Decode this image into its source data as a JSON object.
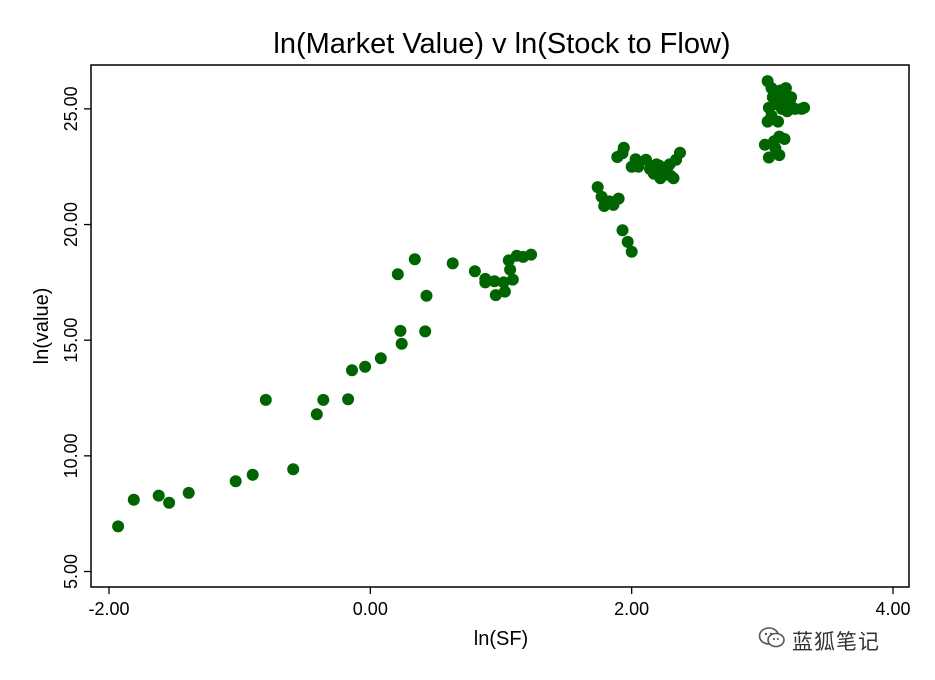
{
  "chart_data": {
    "type": "scatter",
    "title": "ln(Market Value) v ln(Stock to Flow)",
    "xlabel": "ln(SF)",
    "ylabel": "ln(value)",
    "xlim": [
      -2.0,
      4.0
    ],
    "ylim": [
      5.0,
      27.2
    ],
    "x_ticks": [
      -2.0,
      0.0,
      2.0,
      4.0
    ],
    "x_tick_labels": [
      "-2.00",
      "0.00",
      "2.00",
      "4.00"
    ],
    "y_ticks": [
      5.0,
      10.0,
      15.0,
      20.0,
      25.0
    ],
    "y_tick_labels": [
      "5.00",
      "10.00",
      "15.00",
      "20.00",
      "25.00"
    ],
    "grid": false,
    "marker_color": "#006400",
    "series": [
      {
        "points": [
          [
            -1.93,
            6.95
          ],
          [
            -1.81,
            8.1
          ],
          [
            -1.62,
            8.28
          ],
          [
            -1.54,
            7.97
          ],
          [
            -1.39,
            8.4
          ],
          [
            -1.03,
            8.9
          ],
          [
            -0.9,
            9.18
          ],
          [
            -0.8,
            12.42
          ],
          [
            -0.59,
            9.42
          ],
          [
            -0.41,
            11.8
          ],
          [
            -0.36,
            12.42
          ],
          [
            -0.17,
            12.45
          ],
          [
            -0.14,
            13.7
          ],
          [
            -0.04,
            13.85
          ],
          [
            0.08,
            14.22
          ],
          [
            0.21,
            17.85
          ],
          [
            0.23,
            15.4
          ],
          [
            0.24,
            14.85
          ],
          [
            0.34,
            18.5
          ],
          [
            0.42,
            15.38
          ],
          [
            0.43,
            16.92
          ],
          [
            0.63,
            18.32
          ],
          [
            0.8,
            17.98
          ],
          [
            0.88,
            17.65
          ],
          [
            0.88,
            17.5
          ],
          [
            0.95,
            17.55
          ],
          [
            0.96,
            16.95
          ],
          [
            1.02,
            17.5
          ],
          [
            1.03,
            17.1
          ],
          [
            1.06,
            18.45
          ],
          [
            1.07,
            18.05
          ],
          [
            1.09,
            17.62
          ],
          [
            1.12,
            18.65
          ],
          [
            1.17,
            18.6
          ],
          [
            1.23,
            18.7
          ],
          [
            1.74,
            21.62
          ],
          [
            1.77,
            21.2
          ],
          [
            1.79,
            20.8
          ],
          [
            1.83,
            21.0
          ],
          [
            1.86,
            20.85
          ],
          [
            1.89,
            22.92
          ],
          [
            1.9,
            21.12
          ],
          [
            1.93,
            23.08
          ],
          [
            1.93,
            19.75
          ],
          [
            1.94,
            23.32
          ],
          [
            1.97,
            19.25
          ],
          [
            2.0,
            18.82
          ],
          [
            2.0,
            22.5
          ],
          [
            2.03,
            22.82
          ],
          [
            2.05,
            22.5
          ],
          [
            2.11,
            22.8
          ],
          [
            2.14,
            22.4
          ],
          [
            2.17,
            22.2
          ],
          [
            2.19,
            22.6
          ],
          [
            2.21,
            22.55
          ],
          [
            2.22,
            22.0
          ],
          [
            2.24,
            22.3
          ],
          [
            2.25,
            22.15
          ],
          [
            2.27,
            22.4
          ],
          [
            2.29,
            22.6
          ],
          [
            2.3,
            22.1
          ],
          [
            2.32,
            22.0
          ],
          [
            2.34,
            22.8
          ],
          [
            2.37,
            23.1
          ],
          [
            3.02,
            23.45
          ],
          [
            3.04,
            24.45
          ],
          [
            3.04,
            26.2
          ],
          [
            3.05,
            22.9
          ],
          [
            3.05,
            25.05
          ],
          [
            3.07,
            24.7
          ],
          [
            3.07,
            25.9
          ],
          [
            3.08,
            25.5
          ],
          [
            3.09,
            23.6
          ],
          [
            3.1,
            23.3
          ],
          [
            3.11,
            25.2
          ],
          [
            3.12,
            24.45
          ],
          [
            3.13,
            23.0
          ],
          [
            3.13,
            23.8
          ],
          [
            3.14,
            25.8
          ],
          [
            3.15,
            25.0
          ],
          [
            3.16,
            25.5
          ],
          [
            3.17,
            23.7
          ],
          [
            3.18,
            25.9
          ],
          [
            3.19,
            24.9
          ],
          [
            3.21,
            25.3
          ],
          [
            3.22,
            25.5
          ],
          [
            3.25,
            25.0
          ],
          [
            3.3,
            25.0
          ],
          [
            3.32,
            25.05
          ]
        ]
      }
    ]
  },
  "watermark": {
    "text": "蓝狐笔记",
    "icon": "wechat-icon"
  }
}
